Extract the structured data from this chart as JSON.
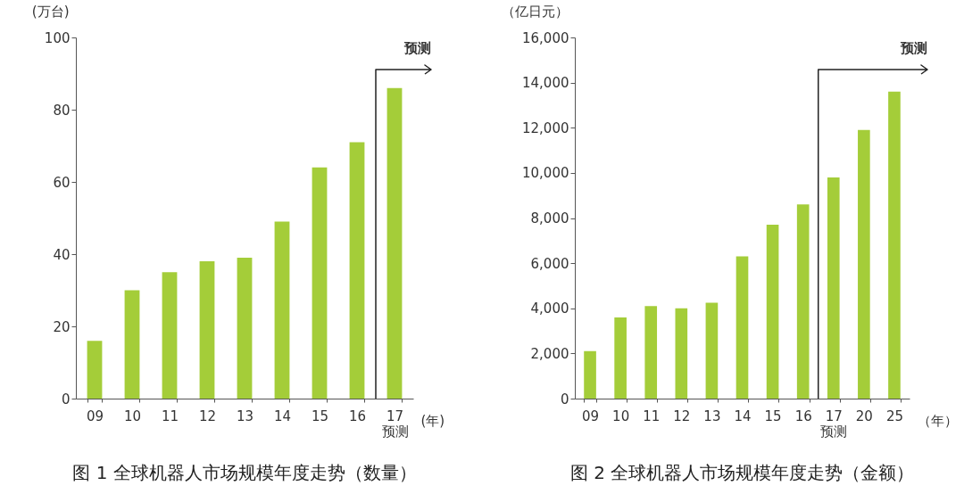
{
  "chart_data": [
    {
      "type": "bar",
      "title": "图 1 全球机器人市场规模年度走势（数量）",
      "ylabel": "(万台)",
      "xlabel": "(年)",
      "categories": [
        "09",
        "10",
        "11",
        "12",
        "13",
        "14",
        "15",
        "16",
        "17\n预测"
      ],
      "values": [
        16,
        30,
        35,
        38,
        39,
        49,
        64,
        71,
        86
      ],
      "color": "#a4cd39",
      "ylim": [
        0,
        100
      ],
      "yticks": [
        0,
        20,
        40,
        60,
        80,
        100
      ],
      "grid": false,
      "ref_lines": [
        {
          "axis": "x",
          "value": "17\n预测",
          "label": "预测"
        }
      ]
    },
    {
      "type": "bar",
      "title": "图 2 全球机器人市场规模年度走势（金额）",
      "ylabel": "（亿日元）",
      "xlabel": "（年）",
      "categories": [
        "09",
        "10",
        "11",
        "12",
        "13",
        "14",
        "15",
        "16",
        "17\n预测",
        "20",
        "25"
      ],
      "values": [
        2100,
        3600,
        4100,
        4000,
        4250,
        6300,
        7700,
        8600,
        9800,
        11900,
        13600
      ],
      "color": "#a4cd39",
      "ylim": [
        0,
        16000
      ],
      "yticks": [
        {
          "value": 0,
          "label": "0"
        },
        {
          "value": 2000,
          "label": "2,000"
        },
        {
          "value": 4000,
          "label": "4,000"
        },
        {
          "value": 6000,
          "label": "6,000"
        },
        {
          "value": 8000,
          "label": "8,000"
        },
        {
          "value": 10000,
          "label": "10,000"
        },
        {
          "value": 12000,
          "label": "12,000"
        },
        {
          "value": 14000,
          "label": "14,000"
        },
        {
          "value": 16000,
          "label": "16,000"
        }
      ],
      "grid": false,
      "ref_lines": [
        {
          "axis": "x",
          "value": "17\n预测",
          "label": "预测"
        }
      ]
    }
  ]
}
